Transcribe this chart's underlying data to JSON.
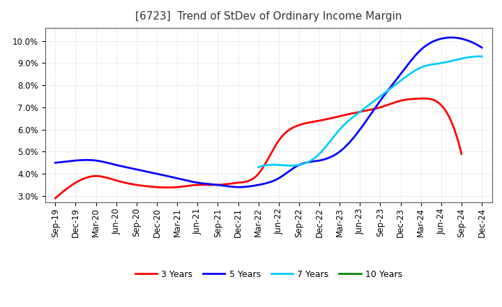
{
  "title": "[6723]  Trend of StDev of Ordinary Income Margin",
  "title_fontsize": 11,
  "background_color": "#ffffff",
  "plot_bg_color": "#ffffff",
  "grid_color": "#aaaaaa",
  "yticks": [
    0.03,
    0.04,
    0.05,
    0.06,
    0.07,
    0.08,
    0.09,
    0.1
  ],
  "ylim": [
    0.027,
    0.106
  ],
  "x_labels": [
    "Sep-19",
    "Dec-19",
    "Mar-20",
    "Jun-20",
    "Sep-20",
    "Dec-20",
    "Mar-21",
    "Jun-21",
    "Sep-21",
    "Dec-21",
    "Mar-22",
    "Jun-22",
    "Sep-22",
    "Dec-22",
    "Mar-23",
    "Jun-23",
    "Sep-23",
    "Dec-23",
    "Mar-24",
    "Jun-24",
    "Sep-24",
    "Dec-24"
  ],
  "y3_x": [
    0,
    1,
    2,
    3,
    4,
    5,
    6,
    7,
    8,
    9,
    10,
    11,
    12,
    13,
    14,
    15,
    16,
    17,
    18,
    19,
    20
  ],
  "y3_y": [
    0.029,
    0.036,
    0.039,
    0.037,
    0.035,
    0.034,
    0.034,
    0.035,
    0.035,
    0.036,
    0.04,
    0.055,
    0.062,
    0.064,
    0.066,
    0.068,
    0.07,
    0.073,
    0.074,
    0.071,
    0.049
  ],
  "y5_x": [
    0,
    1,
    2,
    3,
    4,
    5,
    6,
    7,
    8,
    9,
    10,
    11,
    12,
    13,
    14,
    15,
    16,
    17,
    18,
    19,
    20,
    21
  ],
  "y5_y": [
    0.045,
    0.046,
    0.046,
    0.044,
    0.042,
    0.04,
    0.038,
    0.036,
    0.035,
    0.034,
    0.035,
    0.038,
    0.044,
    0.046,
    0.05,
    0.06,
    0.073,
    0.085,
    0.096,
    0.101,
    0.101,
    0.097
  ],
  "y7_x": [
    10,
    11,
    12,
    13,
    14,
    15,
    16,
    17,
    18,
    19,
    20,
    21
  ],
  "y7_y": [
    0.043,
    0.044,
    0.044,
    0.049,
    0.06,
    0.068,
    0.075,
    0.082,
    0.088,
    0.09,
    0.092,
    0.093
  ],
  "y10_x": [],
  "y10_y": [],
  "color_3y": "#ff0000",
  "color_5y": "#0000ff",
  "color_7y": "#00ccff",
  "color_10y": "#008800",
  "linewidth": 2.0,
  "legend_labels": [
    "3 Years",
    "5 Years",
    "7 Years",
    "10 Years"
  ]
}
